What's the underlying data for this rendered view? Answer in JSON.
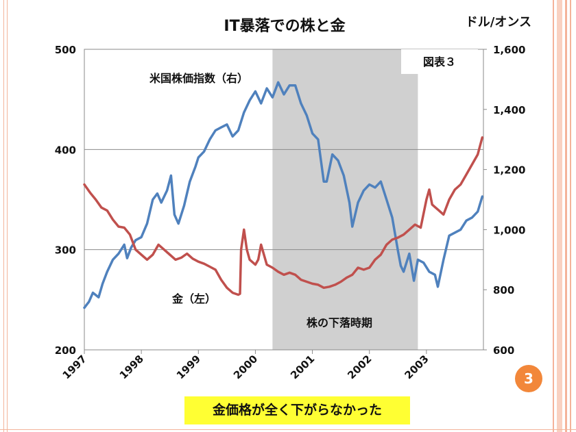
{
  "slide": {
    "page_number": "3",
    "caption": "金価格が全く下がらなかった"
  },
  "chart_data": {
    "type": "line",
    "title": "IT暴落での株と金",
    "figure_label": "図表３",
    "right_axis_unit": "ドル/オンス",
    "x_ticks": [
      "1997",
      "1998",
      "1999",
      "2000",
      "2001",
      "2002",
      "2003"
    ],
    "xlim": [
      1997.0,
      2004.0
    ],
    "y_left": {
      "lim": [
        200,
        500
      ],
      "ticks": [
        "200",
        "300",
        "400",
        "500"
      ]
    },
    "y_right": {
      "lim": [
        600,
        1600
      ],
      "ticks": [
        "600",
        "800",
        "1,000",
        "1,200",
        "1,400",
        "1,600"
      ]
    },
    "grid": "horizontal",
    "shaded_period": {
      "start": 2000.3,
      "end": 2002.85,
      "label": "株の下落時期",
      "color": "#d0d0d0"
    },
    "series": [
      {
        "name": "米国株価指数（右）",
        "axis": "right",
        "color": "#4f81bd",
        "x": [
          1997.0,
          1997.08,
          1997.15,
          1997.25,
          1997.32,
          1997.4,
          1997.5,
          1997.6,
          1997.7,
          1997.75,
          1997.82,
          1997.9,
          1998.0,
          1998.1,
          1998.2,
          1998.28,
          1998.35,
          1998.45,
          1998.52,
          1998.58,
          1998.65,
          1998.75,
          1998.85,
          1998.95,
          1999.0,
          1999.1,
          1999.2,
          1999.3,
          1999.4,
          1999.5,
          1999.6,
          1999.7,
          1999.8,
          1999.9,
          2000.0,
          2000.1,
          2000.2,
          2000.3,
          2000.4,
          2000.5,
          2000.6,
          2000.7,
          2000.8,
          2000.9,
          2001.0,
          2001.1,
          2001.2,
          2001.25,
          2001.35,
          2001.45,
          2001.55,
          2001.65,
          2001.7,
          2001.8,
          2001.9,
          2002.0,
          2002.1,
          2002.2,
          2002.3,
          2002.4,
          2002.5,
          2002.55,
          2002.6,
          2002.7,
          2002.78,
          2002.85,
          2002.95,
          2003.05,
          2003.15,
          2003.2,
          2003.3,
          2003.4,
          2003.5,
          2003.6,
          2003.7,
          2003.8,
          2003.9,
          2003.98
        ],
        "values": [
          740,
          760,
          790,
          775,
          820,
          860,
          900,
          920,
          950,
          905,
          940,
          965,
          975,
          1020,
          1100,
          1120,
          1090,
          1130,
          1180,
          1050,
          1020,
          1080,
          1160,
          1210,
          1240,
          1260,
          1300,
          1330,
          1340,
          1350,
          1310,
          1330,
          1390,
          1430,
          1460,
          1420,
          1470,
          1440,
          1490,
          1450,
          1480,
          1480,
          1420,
          1380,
          1320,
          1300,
          1160,
          1160,
          1250,
          1230,
          1180,
          1090,
          1010,
          1090,
          1130,
          1150,
          1140,
          1160,
          1100,
          1040,
          930,
          880,
          860,
          920,
          830,
          900,
          890,
          860,
          850,
          810,
          900,
          980,
          990,
          1000,
          1030,
          1040,
          1060,
          1110
        ]
      },
      {
        "name": "金（左）",
        "axis": "left",
        "color": "#c0504d",
        "x": [
          1997.0,
          1997.1,
          1997.2,
          1997.3,
          1997.4,
          1997.5,
          1997.6,
          1997.7,
          1997.8,
          1997.9,
          1998.0,
          1998.1,
          1998.2,
          1998.3,
          1998.4,
          1998.5,
          1998.6,
          1998.7,
          1998.8,
          1998.9,
          1999.0,
          1999.1,
          1999.2,
          1999.3,
          1999.4,
          1999.5,
          1999.6,
          1999.7,
          1999.73,
          1999.75,
          1999.8,
          1999.85,
          1999.9,
          2000.0,
          2000.05,
          2000.1,
          2000.2,
          2000.3,
          2000.4,
          2000.5,
          2000.6,
          2000.7,
          2000.8,
          2000.9,
          2001.0,
          2001.1,
          2001.2,
          2001.3,
          2001.4,
          2001.5,
          2001.6,
          2001.7,
          2001.8,
          2001.9,
          2002.0,
          2002.1,
          2002.2,
          2002.3,
          2002.4,
          2002.5,
          2002.6,
          2002.7,
          2002.8,
          2002.9,
          2003.0,
          2003.05,
          2003.1,
          2003.2,
          2003.3,
          2003.4,
          2003.5,
          2003.6,
          2003.7,
          2003.8,
          2003.9,
          2003.98
        ],
        "values": [
          365,
          357,
          350,
          342,
          339,
          330,
          323,
          322,
          315,
          300,
          295,
          290,
          295,
          305,
          300,
          295,
          290,
          292,
          296,
          291,
          288,
          286,
          283,
          280,
          270,
          262,
          257,
          255,
          256,
          300,
          320,
          300,
          290,
          285,
          290,
          305,
          285,
          282,
          278,
          275,
          277,
          275,
          270,
          268,
          266,
          265,
          262,
          263,
          265,
          268,
          272,
          275,
          282,
          280,
          282,
          290,
          295,
          305,
          310,
          312,
          315,
          320,
          325,
          322,
          350,
          360,
          345,
          340,
          335,
          350,
          360,
          365,
          375,
          385,
          395,
          412
        ]
      }
    ]
  }
}
